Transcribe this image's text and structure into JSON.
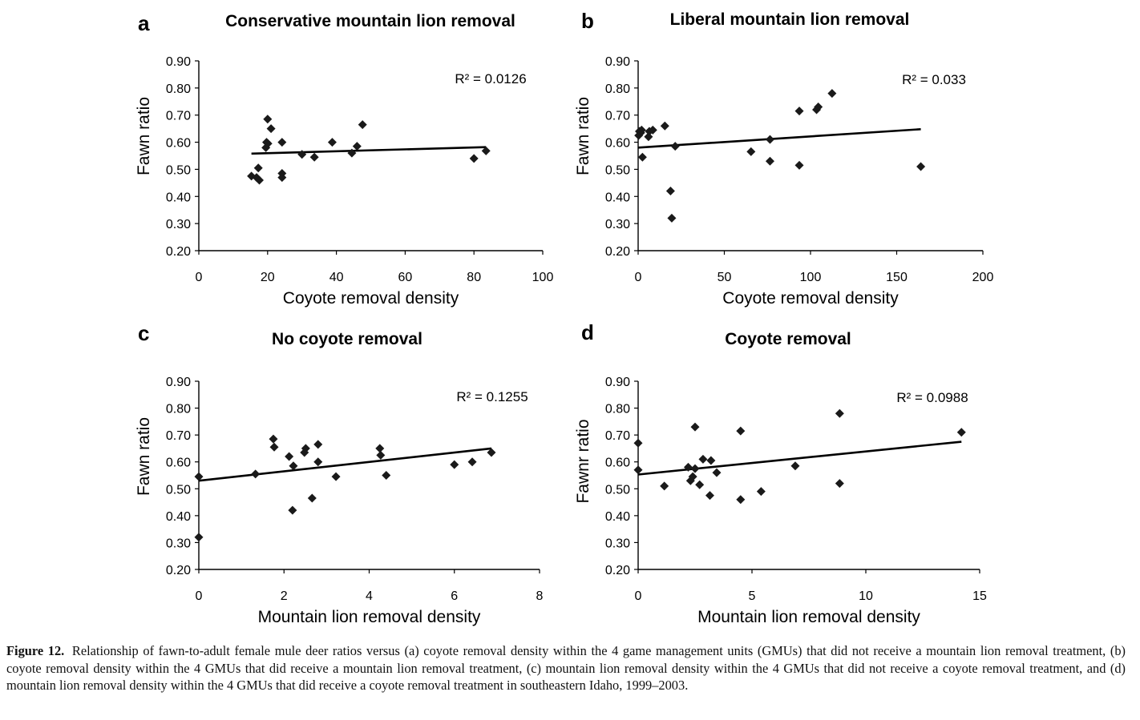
{
  "chart_data": [
    {
      "type": "scatter",
      "panel": "a",
      "title": "Conservative mountain lion removal",
      "xlabel": "Coyote removal density",
      "ylabel": "Fawn ratio",
      "xlim": [
        0,
        100
      ],
      "ylim": [
        0.2,
        0.9
      ],
      "xticks": [
        0,
        20,
        40,
        60,
        80,
        100
      ],
      "yticks": [
        0.2,
        0.3,
        0.4,
        0.5,
        0.6,
        0.7,
        0.8,
        0.9
      ],
      "xtick_labels": [
        "0",
        "20",
        "40",
        "60",
        "80",
        "100"
      ],
      "ytick_labels": [
        "0.20",
        "0.30",
        "0.40",
        "0.50",
        "0.60",
        "0.70",
        "0.80",
        "0.90"
      ],
      "points": [
        [
          15.3,
          0.475
        ],
        [
          16.8,
          0.47
        ],
        [
          17.3,
          0.505
        ],
        [
          17.6,
          0.46
        ],
        [
          19.5,
          0.58
        ],
        [
          19.7,
          0.6
        ],
        [
          20.0,
          0.685
        ],
        [
          20.1,
          0.595
        ],
        [
          21.0,
          0.65
        ],
        [
          24.2,
          0.485
        ],
        [
          24.2,
          0.47
        ],
        [
          24.2,
          0.6
        ],
        [
          30.0,
          0.555
        ],
        [
          33.6,
          0.545
        ],
        [
          38.8,
          0.6
        ],
        [
          44.5,
          0.56
        ],
        [
          46.0,
          0.585
        ],
        [
          47.6,
          0.665
        ],
        [
          80.0,
          0.54
        ],
        [
          83.5,
          0.568
        ]
      ],
      "trendline": {
        "x": [
          15.3,
          83.5
        ],
        "y": [
          0.558,
          0.582
        ]
      },
      "r2_label": "R² = 0.0126"
    },
    {
      "type": "scatter",
      "panel": "b",
      "title": "Liberal mountain lion removal",
      "xlabel": "Coyote removal density",
      "ylabel": "Fawn ratio",
      "xlim": [
        0,
        200
      ],
      "ylim": [
        0.2,
        0.9
      ],
      "xticks": [
        0,
        50,
        100,
        150,
        200
      ],
      "yticks": [
        0.2,
        0.3,
        0.4,
        0.5,
        0.6,
        0.7,
        0.8,
        0.9
      ],
      "xtick_labels": [
        "0",
        "50",
        "100",
        "150",
        "200"
      ],
      "ytick_labels": [
        "0.20",
        "0.30",
        "0.40",
        "0.50",
        "0.60",
        "0.70",
        "0.80",
        "0.90"
      ],
      "points": [
        [
          0.3,
          0.625
        ],
        [
          0.7,
          0.64
        ],
        [
          1.5,
          0.635
        ],
        [
          2.0,
          0.645
        ],
        [
          2.5,
          0.545
        ],
        [
          6.0,
          0.62
        ],
        [
          6.5,
          0.64
        ],
        [
          8.5,
          0.645
        ],
        [
          15.5,
          0.66
        ],
        [
          18.8,
          0.42
        ],
        [
          19.5,
          0.32
        ],
        [
          21.5,
          0.585
        ],
        [
          65.5,
          0.565
        ],
        [
          76.5,
          0.53
        ],
        [
          76.5,
          0.61
        ],
        [
          93.5,
          0.515
        ],
        [
          93.5,
          0.715
        ],
        [
          103.5,
          0.72
        ],
        [
          104.5,
          0.73
        ],
        [
          112.5,
          0.78
        ],
        [
          164.0,
          0.51
        ]
      ],
      "trendline": {
        "x": [
          0,
          164.0
        ],
        "y": [
          0.58,
          0.648
        ]
      },
      "r2_label": "R² = 0.033"
    },
    {
      "type": "scatter",
      "panel": "c",
      "title": "No coyote removal",
      "xlabel": "Mountain lion removal density",
      "ylabel": "Fawn ratio",
      "xlim": [
        0,
        8
      ],
      "ylim": [
        0.2,
        0.9
      ],
      "xticks": [
        0,
        2,
        4,
        6,
        8
      ],
      "yticks": [
        0.2,
        0.3,
        0.4,
        0.5,
        0.6,
        0.7,
        0.8,
        0.9
      ],
      "xtick_labels": [
        "0",
        "2",
        "4",
        "6",
        "8"
      ],
      "ytick_labels": [
        "0.20",
        "0.30",
        "0.40",
        "0.50",
        "0.60",
        "0.70",
        "0.80",
        "0.90"
      ],
      "points": [
        [
          0,
          0.545
        ],
        [
          0,
          0.32
        ],
        [
          1.33,
          0.555
        ],
        [
          1.75,
          0.685
        ],
        [
          1.77,
          0.655
        ],
        [
          2.12,
          0.62
        ],
        [
          2.2,
          0.42
        ],
        [
          2.22,
          0.585
        ],
        [
          2.48,
          0.635
        ],
        [
          2.51,
          0.65
        ],
        [
          2.66,
          0.465
        ],
        [
          2.8,
          0.665
        ],
        [
          2.8,
          0.6
        ],
        [
          3.22,
          0.545
        ],
        [
          4.25,
          0.65
        ],
        [
          4.27,
          0.625
        ],
        [
          4.4,
          0.55
        ],
        [
          6.0,
          0.59
        ],
        [
          6.42,
          0.6
        ],
        [
          6.87,
          0.635
        ]
      ],
      "trendline": {
        "x": [
          0,
          6.87
        ],
        "y": [
          0.53,
          0.65
        ]
      },
      "r2_label": "R² = 0.1255"
    },
    {
      "type": "scatter",
      "panel": "d",
      "title": "Coyote removal",
      "xlabel": "Mountain lion removal density",
      "ylabel": "Fawnr ratio",
      "xlim": [
        0,
        15
      ],
      "ylim": [
        0.2,
        0.9
      ],
      "xticks": [
        0,
        5,
        10,
        15
      ],
      "yticks": [
        0.2,
        0.3,
        0.4,
        0.5,
        0.6,
        0.7,
        0.8,
        0.9
      ],
      "xtick_labels": [
        "0",
        "5",
        "10",
        "15"
      ],
      "ytick_labels": [
        "0.20",
        "0.30",
        "0.40",
        "0.50",
        "0.60",
        "0.70",
        "0.80",
        "0.90"
      ],
      "points": [
        [
          0,
          0.67
        ],
        [
          0,
          0.57
        ],
        [
          1.15,
          0.51
        ],
        [
          2.2,
          0.58
        ],
        [
          2.3,
          0.53
        ],
        [
          2.4,
          0.545
        ],
        [
          2.5,
          0.73
        ],
        [
          2.5,
          0.575
        ],
        [
          2.7,
          0.515
        ],
        [
          2.85,
          0.61
        ],
        [
          3.15,
          0.475
        ],
        [
          3.2,
          0.605
        ],
        [
          3.45,
          0.56
        ],
        [
          4.5,
          0.715
        ],
        [
          4.5,
          0.46
        ],
        [
          5.4,
          0.49
        ],
        [
          6.9,
          0.585
        ],
        [
          8.85,
          0.78
        ],
        [
          8.85,
          0.52
        ],
        [
          14.2,
          0.71
        ]
      ],
      "trendline": {
        "x": [
          0,
          14.2
        ],
        "y": [
          0.553,
          0.675
        ]
      },
      "r2_label": "R² = 0.0988"
    }
  ],
  "caption": {
    "label": "Figure 12.",
    "text": "Relationship of fawn-to-adult female mule deer ratios versus (a) coyote removal density within the 4 game management units (GMUs) that did not receive a mountain lion removal treatment, (b) coyote removal density within the 4 GMUs that did receive a mountain lion removal treatment, (c) mountain lion removal density within the 4 GMUs that did not receive a coyote removal treatment, and (d) mountain lion removal density within the 4 GMUs that did receive a coyote removal treatment in southeastern Idaho, 1999–2003."
  }
}
